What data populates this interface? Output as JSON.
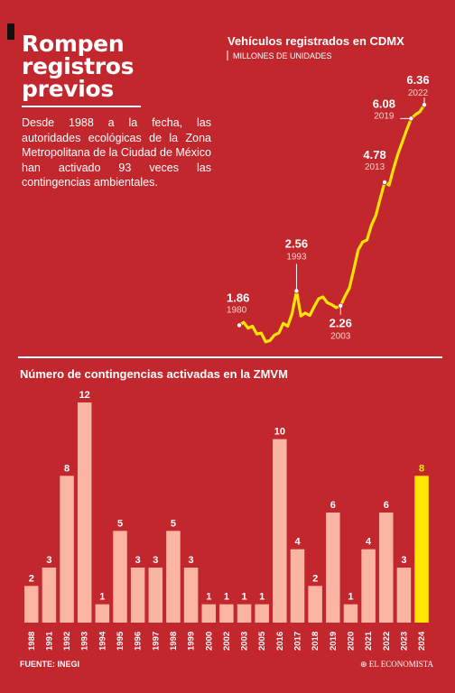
{
  "headline": "Rompen registros previos",
  "intro": "Desde 1988 a la fecha, las autoridades ecológicas de la Zona Metropolitana de la Ciudad de México han activado 93 veces las contingencias ambientales.",
  "source": "FUENTE: INEGI",
  "brand": "EL ECONOMISTA",
  "colors": {
    "background": "#c1272d",
    "bar": "#f9b4a2",
    "highlight_bar": "#ffe500",
    "line": "#ffe500",
    "text": "#ffffff"
  },
  "chart_data": [
    {
      "type": "line",
      "title": "Vehículos registrados en CDMX",
      "subtitle": "MILLONES DE UNIDADES",
      "x": [
        1980,
        1981,
        1982,
        1983,
        1984,
        1985,
        1986,
        1987,
        1988,
        1989,
        1990,
        1991,
        1992,
        1993,
        1994,
        1995,
        1996,
        1997,
        1998,
        1999,
        2000,
        2001,
        2002,
        2003,
        2004,
        2005,
        2006,
        2007,
        2008,
        2009,
        2010,
        2011,
        2012,
        2013,
        2014,
        2015,
        2016,
        2017,
        2018,
        2019,
        2020,
        2021,
        2022
      ],
      "values": [
        1.86,
        1.92,
        1.8,
        1.84,
        1.68,
        1.7,
        1.52,
        1.55,
        1.66,
        1.7,
        1.9,
        1.84,
        2.1,
        2.56,
        2.05,
        2.11,
        2.06,
        2.24,
        2.4,
        2.44,
        2.32,
        2.28,
        2.22,
        2.26,
        2.45,
        2.62,
        3.0,
        3.4,
        3.56,
        3.6,
        3.9,
        4.1,
        4.45,
        4.78,
        4.72,
        5.05,
        5.35,
        5.6,
        5.85,
        6.08,
        6.16,
        6.22,
        6.36
      ],
      "annotations": [
        {
          "value": "1.86",
          "year": "1980"
        },
        {
          "value": "2.56",
          "year": "1993"
        },
        {
          "value": "2.26",
          "year": "2003"
        },
        {
          "value": "4.78",
          "year": "2013"
        },
        {
          "value": "6.08",
          "year": "2019"
        },
        {
          "value": "6.36",
          "year": "2022"
        }
      ]
    },
    {
      "type": "bar",
      "title": "Número de contingencias activadas en la ZMVM",
      "categories": [
        "1988",
        "1991",
        "1992",
        "1993",
        "1994",
        "1995",
        "1996",
        "1997",
        "1998",
        "1999",
        "2000",
        "2002",
        "2003",
        "2005",
        "2016",
        "2017",
        "2018",
        "2019",
        "2020",
        "2021",
        "2022",
        "2023",
        "2024"
      ],
      "values": [
        2,
        3,
        8,
        12,
        1,
        5,
        3,
        3,
        5,
        3,
        1,
        1,
        1,
        1,
        10,
        4,
        2,
        6,
        1,
        4,
        6,
        3,
        8
      ],
      "highlight": "2024",
      "ylim": [
        0,
        12
      ]
    }
  ]
}
